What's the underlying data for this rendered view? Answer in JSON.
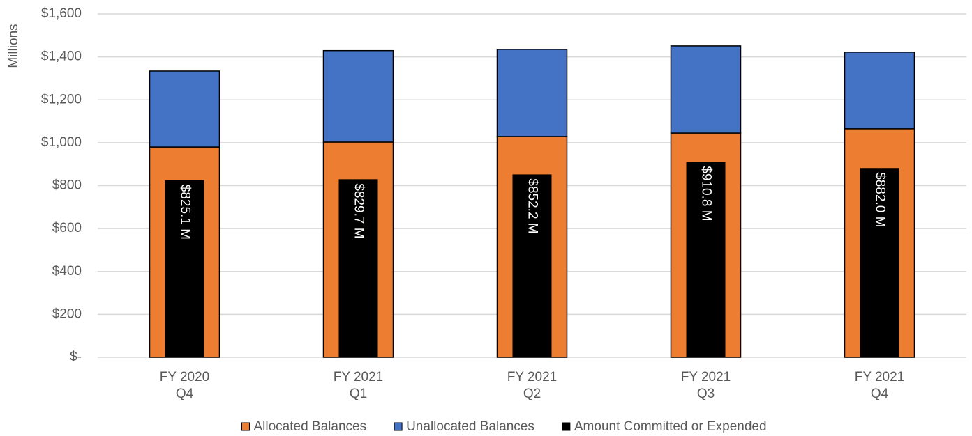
{
  "chart_data": {
    "type": "bar",
    "y_label": "Millions",
    "categories": [
      [
        "FY 2020",
        "Q4"
      ],
      [
        "FY 2021",
        "Q1"
      ],
      [
        "FY 2021",
        "Q2"
      ],
      [
        "FY 2021",
        "Q3"
      ],
      [
        "FY 2021",
        "Q4"
      ]
    ],
    "series": [
      {
        "name": "Allocated Balances",
        "color": "#ed7d31",
        "values": [
          980,
          1003,
          1029,
          1045,
          1065
        ]
      },
      {
        "name": "Unallocated Balances",
        "color": "#4472c4",
        "values": [
          354,
          426,
          406,
          406,
          357
        ]
      },
      {
        "name": "Amount Committed or Expended",
        "color": "#000000",
        "overlay": true,
        "values": [
          825.1,
          829.7,
          852.2,
          910.8,
          882.0
        ],
        "value_labels": [
          "$825.1 M",
          "$829.7 M",
          "$852.2 M",
          "$910.8 M",
          "$882.0 M"
        ]
      }
    ],
    "ylim": [
      0,
      1600
    ],
    "yticks": [
      {
        "value": 0,
        "label": "$-"
      },
      {
        "value": 200,
        "label": "$200"
      },
      {
        "value": 400,
        "label": "$400"
      },
      {
        "value": 600,
        "label": "$600"
      },
      {
        "value": 800,
        "label": "$800"
      },
      {
        "value": 1000,
        "label": "$1,000"
      },
      {
        "value": 1200,
        "label": "$1,200"
      },
      {
        "value": 1400,
        "label": "$1,400"
      },
      {
        "value": 1600,
        "label": "$1,600"
      }
    ],
    "grid": true,
    "legend": "bottom"
  }
}
